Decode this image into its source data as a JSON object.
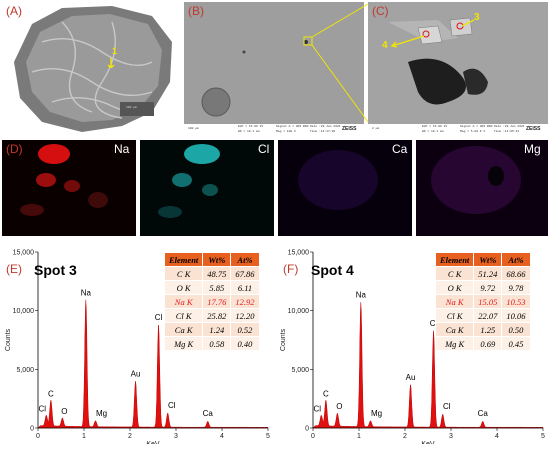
{
  "panels": {
    "a": {
      "label": "(A)",
      "scale_text": "100 μm",
      "spot_number": "1"
    },
    "b": {
      "label": "(B)",
      "scale_text": "100 μm",
      "info_1": "EHT = 15.00 kV",
      "info_2": "WD = 10.1 mm",
      "info_3": "Signal A = HFS BSD",
      "info_4": "Mag = 100 X",
      "info_5": "Date :29 Jan 2021",
      "info_6": "Time :14:17:20",
      "brand": "ZEISS"
    },
    "c": {
      "label": "(C)",
      "scale_text": "2 μm",
      "spot_3": "3",
      "spot_4": "4",
      "info_1": "EHT = 15.00 kV",
      "info_2": "WD = 10.1 mm",
      "info_3": "Signal A = HFS BSD",
      "info_4": "Mag = 5.00 K X",
      "info_5": "Date :29 Jan 2021",
      "info_6": "Time :14:05:41",
      "brand": "ZEISS"
    },
    "d": {
      "label": "(D)",
      "maps": [
        "Na",
        "Cl",
        "Ca",
        "Mg"
      ]
    },
    "e": {
      "label": "(E)",
      "title": "Spot 3"
    },
    "f": {
      "label": "(F)",
      "title": "Spot 4"
    }
  },
  "table_headers": [
    "Element",
    "Wt%",
    "At%"
  ],
  "table_e": [
    [
      "C K",
      "48.75",
      "67.86"
    ],
    [
      "O K",
      "5.85",
      "6.11"
    ],
    [
      "Na K",
      "17.76",
      "12.92"
    ],
    [
      "Cl K",
      "25.82",
      "12.20"
    ],
    [
      "Ca K",
      "1.24",
      "0.52"
    ],
    [
      "Mg K",
      "0.58",
      "0.40"
    ]
  ],
  "table_f": [
    [
      "C K",
      "51.24",
      "68.66"
    ],
    [
      "O K",
      "9.72",
      "9.78"
    ],
    [
      "Na K",
      "15.05",
      "10.53"
    ],
    [
      "Cl K",
      "22.07",
      "10.06"
    ],
    [
      "Ca K",
      "1.25",
      "0.50"
    ],
    [
      "Mg K",
      "0.69",
      "0.45"
    ]
  ],
  "colors": {
    "label_red": "#c0392b",
    "spectrum_red": "#e01010",
    "table_header": "#e8601f",
    "highlight": "#e02020",
    "callout_yellow": "#f2e600"
  },
  "chart_data": [
    {
      "type": "area",
      "title": "Spot 3",
      "xlabel": "KeV",
      "ylabel": "Counts",
      "xlim": [
        0,
        5
      ],
      "ylim": [
        0,
        15000
      ],
      "x_ticks": [
        "0",
        "1",
        "2",
        "3",
        "4",
        "5"
      ],
      "y_ticks": [
        "0",
        "5,000",
        "10,000",
        "15,000"
      ],
      "peaks": [
        {
          "label": "C",
          "x": 0.28,
          "y": 2200
        },
        {
          "label": "Cl",
          "x": 0.18,
          "y": 900
        },
        {
          "label": "O",
          "x": 0.53,
          "y": 700
        },
        {
          "label": "Na",
          "x": 1.04,
          "y": 10800
        },
        {
          "label": "Mg",
          "x": 1.25,
          "y": 500
        },
        {
          "label": "Au",
          "x": 2.12,
          "y": 3900
        },
        {
          "label": "Cl",
          "x": 2.62,
          "y": 8700
        },
        {
          "label": "Cl",
          "x": 2.82,
          "y": 1200
        },
        {
          "label": "Ca",
          "x": 3.69,
          "y": 500
        }
      ]
    },
    {
      "type": "area",
      "title": "Spot 4",
      "xlabel": "KeV",
      "ylabel": "Counts",
      "xlim": [
        0,
        5
      ],
      "ylim": [
        0,
        15000
      ],
      "x_ticks": [
        "0",
        "1",
        "2",
        "3",
        "4",
        "5"
      ],
      "y_ticks": [
        "0",
        "5,000",
        "10,000",
        "15,000"
      ],
      "peaks": [
        {
          "label": "C",
          "x": 0.28,
          "y": 2200
        },
        {
          "label": "Cl",
          "x": 0.18,
          "y": 900
        },
        {
          "label": "O",
          "x": 0.53,
          "y": 1100
        },
        {
          "label": "Na",
          "x": 1.04,
          "y": 10600
        },
        {
          "label": "Mg",
          "x": 1.25,
          "y": 500
        },
        {
          "label": "Au",
          "x": 2.12,
          "y": 3600
        },
        {
          "label": "Cl",
          "x": 2.62,
          "y": 8200
        },
        {
          "label": "Cl",
          "x": 2.82,
          "y": 1100
        },
        {
          "label": "Ca",
          "x": 3.69,
          "y": 500
        }
      ]
    }
  ]
}
